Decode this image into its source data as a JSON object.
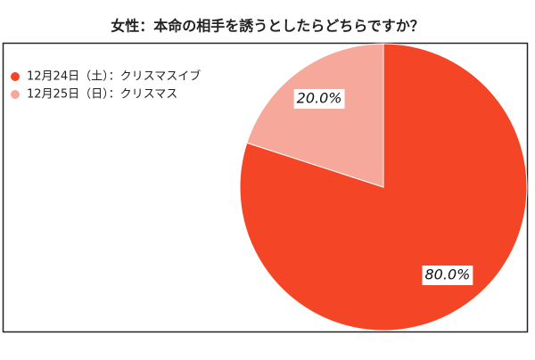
{
  "chart_data": {
    "type": "pie",
    "title": "女性：本命の相手を誘うとしたらどちらですか？",
    "categories": [
      "12月24日（土）：クリスマスイブ",
      "12月25日（日）：クリスマス"
    ],
    "values": [
      80.0,
      20.0
    ],
    "value_labels": [
      "80.0%",
      "20.0%"
    ],
    "colors": [
      "#f44627",
      "#f6a89a"
    ],
    "legend": "upper left"
  }
}
